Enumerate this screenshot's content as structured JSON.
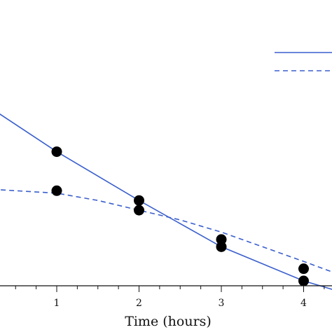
{
  "chart_data": {
    "type": "line",
    "xlabel": "Time (hours)",
    "ylabel": "",
    "title": "",
    "x_ticks": [
      "1",
      "2",
      "3",
      "4"
    ],
    "xlim": [
      -0.7,
      4.4
    ],
    "ylim": [
      0,
      1
    ],
    "grid": false,
    "legend_position": "top-right",
    "series": [
      {
        "style": "solid",
        "color": "#3a5fcd",
        "line": [
          [
            -0.7,
            0.93
          ],
          [
            1,
            0.55
          ],
          [
            2,
            0.35
          ],
          [
            3,
            0.16
          ],
          [
            4,
            0.02
          ],
          [
            4.4,
            -0.02
          ]
        ],
        "points": [
          [
            1,
            0.55
          ],
          [
            2,
            0.35
          ],
          [
            3,
            0.16
          ],
          [
            4,
            0.02
          ]
        ]
      },
      {
        "style": "dashed",
        "color": "#3a5fcd",
        "line": [
          [
            -0.7,
            0.4
          ],
          [
            0,
            0.4
          ],
          [
            0.5,
            0.39
          ],
          [
            1,
            0.38
          ],
          [
            1.5,
            0.35
          ],
          [
            2,
            0.31
          ],
          [
            2.5,
            0.27
          ],
          [
            3,
            0.22
          ],
          [
            3.5,
            0.16
          ],
          [
            4,
            0.1
          ],
          [
            4.4,
            0.05
          ]
        ],
        "points": [
          [
            1,
            0.39
          ],
          [
            2,
            0.31
          ],
          [
            3,
            0.19
          ],
          [
            4,
            0.07
          ]
        ]
      }
    ]
  }
}
